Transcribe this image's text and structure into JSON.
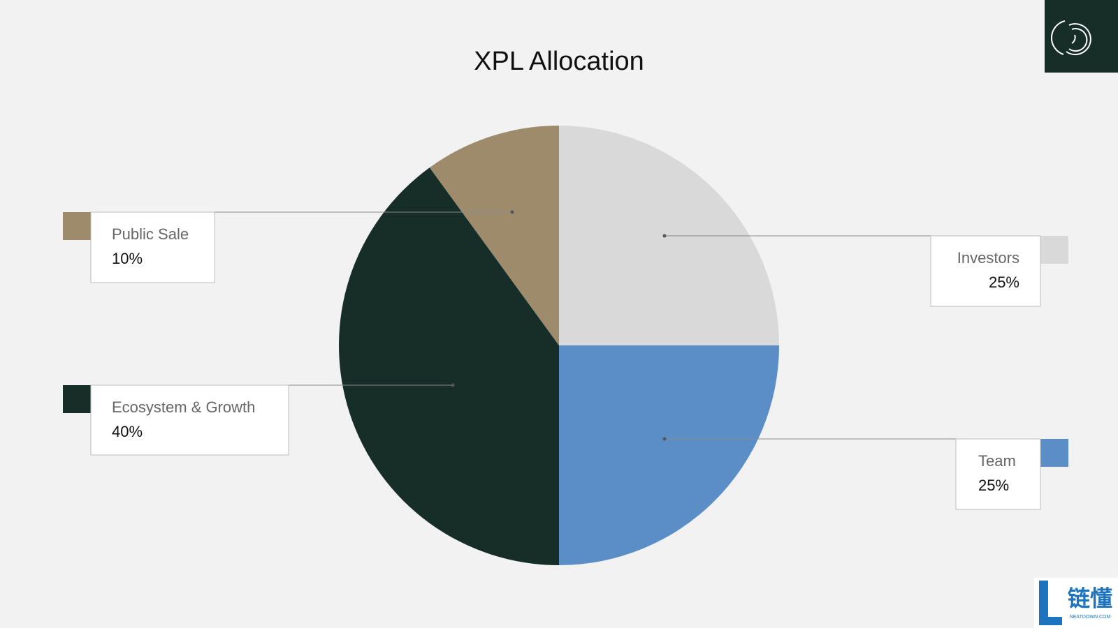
{
  "chart_data": {
    "type": "pie",
    "title": "XPL Allocation",
    "categories": [
      "Investors",
      "Team",
      "Ecosystem & Growth",
      "Public Sale"
    ],
    "values": [
      25,
      25,
      40,
      10
    ],
    "value_labels": [
      "25%",
      "25%",
      "40%",
      "10%"
    ],
    "colors": [
      "#d9d9d9",
      "#5b8ec7",
      "#172d28",
      "#9e8b6c"
    ]
  },
  "watermark": {
    "text": "链懂",
    "subtext": "NEATDOWN.COM"
  }
}
